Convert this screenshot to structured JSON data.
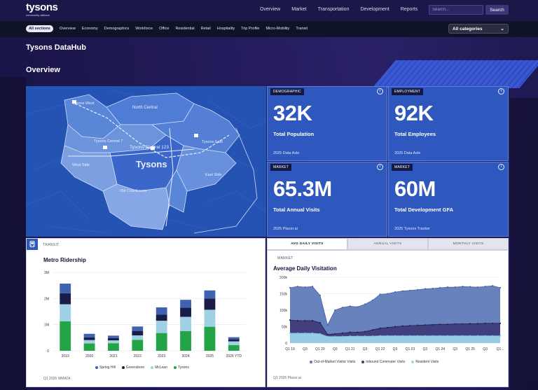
{
  "topbar": {
    "logo": "tysons",
    "logo_sub": "community alliance",
    "nav": [
      "Overview",
      "Market",
      "Transportation",
      "Development",
      "Reports"
    ],
    "search_placeholder": "Search...",
    "search_button": "Search"
  },
  "sections": {
    "items": [
      "All sections",
      "Overview",
      "Economy",
      "Demographics",
      "Workforce",
      "Office",
      "Residential",
      "Retail",
      "Hospitality",
      "Trip Profile",
      "Micro-Mobility",
      "Transit"
    ],
    "active": "All sections",
    "category_select": "All categories"
  },
  "page_title": "Tysons DataHub",
  "overview_heading": "Overview",
  "map": {
    "labels": {
      "tysons_west": "Tysons West",
      "north_central": "North Central",
      "tysons_central_7": "Tysons Central 7",
      "tysons_central_123": "Tysons Central 123",
      "tysons_east": "Tysons East",
      "west_side": "West Side",
      "tysons": "Tysons",
      "east_side": "East Side",
      "old_courthouse": "Old Courthouse"
    }
  },
  "cards": [
    {
      "tag": "DEMOGRAPHIC",
      "value": "32K",
      "label": "Total Population",
      "source": "2025 Data Axle",
      "info": "i"
    },
    {
      "tag": "EMPLOYMENT",
      "value": "92K",
      "label": "Total Employees",
      "source": "2025 Data Axle",
      "info": "i"
    },
    {
      "tag": "MARKET",
      "value": "65.3M",
      "label": "Total Annual Visits",
      "source": "2025 Placer.ai",
      "info": "i"
    },
    {
      "tag": "MARKET",
      "value": "60M",
      "label": "Total Development GFA",
      "source": "2025 Tysons Tracker",
      "info": "i"
    }
  ],
  "transit_panel": {
    "tag": "TRANSIT",
    "title": "Metro Ridership",
    "source": "Q1 2026 WMATA",
    "legend": [
      "Spring Hill",
      "Greensboro",
      "McLean",
      "Tysons"
    ]
  },
  "visits_panel": {
    "tabs": [
      "AVG DAILY VISITS",
      "ANNUAL VISITS",
      "MONTHLY VISITS"
    ],
    "active_tab": "AVG DAILY VISITS",
    "tag": "MARKET",
    "title": "Average Daily Visitation",
    "source": "Q1 2026 Placer.ai",
    "legend": [
      "Out-of-Market Visitor Visits",
      "Inbound Commuter Visits",
      "Resident Visits"
    ]
  },
  "colors": {
    "spring_hill": "#3f63b0",
    "greensboro": "#1a1c4a",
    "mclean": "#9fd0e3",
    "tysons": "#22a447",
    "out_of_market": "#5a77b6",
    "inbound": "#3e3a78",
    "resident": "#9fd6ea"
  },
  "chart_data": [
    {
      "type": "bar",
      "title": "Metro Ridership",
      "categories": [
        "2019",
        "2020",
        "2021",
        "2022",
        "2023",
        "2024",
        "2025",
        "2026 YTD"
      ],
      "yticks": [
        "0",
        "1M",
        "2M",
        "3M"
      ],
      "ylim": [
        0,
        3000000
      ],
      "stacked": true,
      "series": [
        {
          "name": "Tysons",
          "values": [
            1130000,
            280000,
            290000,
            420000,
            680000,
            750000,
            920000,
            220000
          ]
        },
        {
          "name": "McLean",
          "values": [
            650000,
            130000,
            110000,
            170000,
            470000,
            550000,
            650000,
            140000
          ]
        },
        {
          "name": "Greensboro",
          "values": [
            420000,
            100000,
            90000,
            170000,
            230000,
            350000,
            430000,
            80000
          ]
        },
        {
          "name": "Spring Hill",
          "values": [
            370000,
            140000,
            90000,
            170000,
            280000,
            300000,
            310000,
            80000
          ]
        }
      ],
      "legend": "bottom"
    },
    {
      "type": "area",
      "title": "Average Daily Visitation",
      "x": [
        "Q1 19",
        "Q2",
        "Q3",
        "Q4",
        "Q1 20",
        "Q2",
        "Q3",
        "Q4",
        "Q1 21",
        "Q2",
        "Q3",
        "Q4",
        "Q1 22",
        "Q2",
        "Q3",
        "Q4",
        "Q1 23",
        "Q2",
        "Q3",
        "Q4",
        "Q1 24",
        "Q2",
        "Q3",
        "Q4",
        "Q1 25",
        "Q2",
        "Q3",
        "Q4",
        "Q1..."
      ],
      "xticks": [
        "Q1 19",
        "Q3",
        "Q1 20",
        "Q3",
        "Q1 21",
        "Q3",
        "Q1 22",
        "Q3",
        "Q1 23",
        "Q3",
        "Q1 24",
        "Q3",
        "Q1 25",
        "Q3",
        "Q1..."
      ],
      "yticks": [
        "0",
        "50k",
        "100k",
        "150k",
        "200k"
      ],
      "ylim": [
        0,
        200000
      ],
      "series": [
        {
          "name": "Out-of-Market Visitor Visits",
          "values": [
            168000,
            172000,
            170000,
            172000,
            145000,
            55000,
            100000,
            108000,
            112000,
            110000,
            118000,
            130000,
            148000,
            150000,
            155000,
            158000,
            160000,
            162000,
            165000,
            166000,
            168000,
            170000,
            170000,
            172000,
            171000,
            170000,
            172000,
            174000,
            168000
          ]
        },
        {
          "name": "Inbound Commuter Visits",
          "values": [
            70000,
            68000,
            68000,
            68000,
            62000,
            26000,
            28000,
            30000,
            33000,
            33000,
            35000,
            40000,
            45000,
            47000,
            50000,
            52000,
            53000,
            54000,
            55000,
            56000,
            57000,
            57000,
            58000,
            58000,
            59000,
            59000,
            60000,
            60000,
            60000
          ]
        },
        {
          "name": "Resident Visits",
          "values": [
            30000,
            30000,
            30000,
            30000,
            28000,
            20000,
            20000,
            20000,
            21000,
            21000,
            21000,
            21000,
            22000,
            22000,
            22000,
            22000,
            22000,
            22000,
            22000,
            22000,
            22000,
            22000,
            22000,
            22000,
            22000,
            22000,
            22000,
            22000,
            22000
          ]
        }
      ],
      "legend": "bottom"
    }
  ]
}
